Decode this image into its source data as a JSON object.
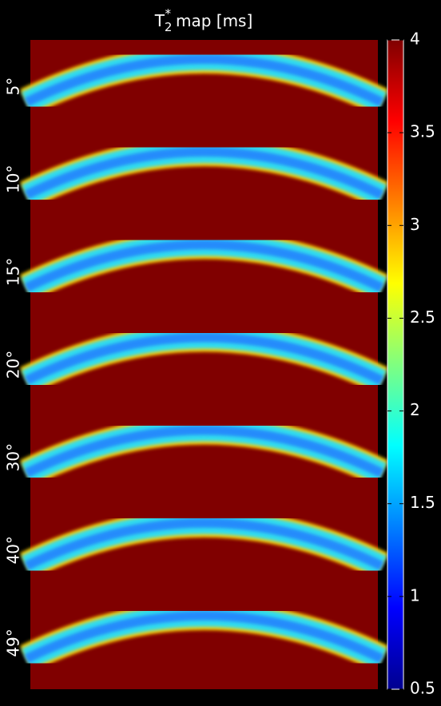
{
  "chart_data": {
    "type": "heatmap",
    "title_base": "T",
    "title_sub": "2",
    "title_sup": "*",
    "title_rest": "map [ms]",
    "categories": [
      "5°",
      "10°",
      "15°",
      "20°",
      "30°",
      "40°",
      "49°"
    ],
    "colormap": "jet",
    "ylim": [
      0.5,
      4
    ],
    "yticks": [
      0.5,
      1,
      1.5,
      2,
      2.5,
      3,
      3.5,
      4
    ]
  }
}
